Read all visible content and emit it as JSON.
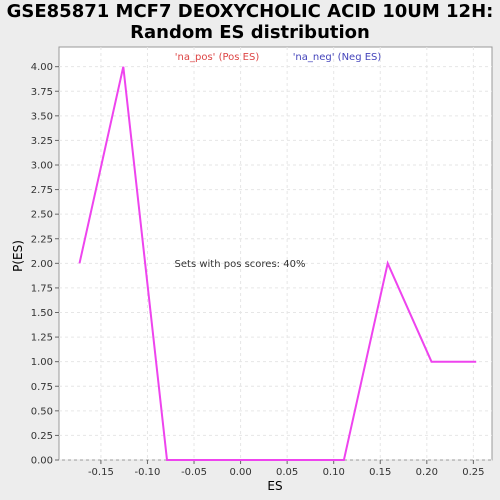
{
  "chart_data": {
    "type": "line",
    "title_line1": "GSE85871 MCF7 DEOXYCHOLIC ACID 10UM 12H:",
    "title_line2": "Random ES distribution",
    "xlabel": "ES",
    "ylabel": "P(ES)",
    "xlim": [
      -0.195,
      0.27
    ],
    "ylim": [
      0,
      4.2
    ],
    "x_ticks": [
      -0.15,
      -0.1,
      -0.05,
      0.0,
      0.05,
      0.1,
      0.15,
      0.2,
      0.25
    ],
    "x_tick_labels": [
      "-0.15",
      "-0.10",
      "-0.05",
      "0.00",
      "0.05",
      "0.10",
      "0.15",
      "0.20",
      "0.25"
    ],
    "y_ticks": [
      0,
      0.25,
      0.5,
      0.75,
      1.0,
      1.25,
      1.5,
      1.75,
      2.0,
      2.25,
      2.5,
      2.75,
      3.0,
      3.25,
      3.5,
      3.75,
      4.0
    ],
    "y_tick_labels": [
      "0.00",
      "0.25",
      "0.50",
      "0.75",
      "1.00",
      "1.25",
      "1.50",
      "1.75",
      "2.00",
      "2.25",
      "2.50",
      "2.75",
      "3.00",
      "3.25",
      "3.50",
      "3.75",
      "4.00"
    ],
    "grid": true,
    "series": [
      {
        "name": "",
        "color": "#ee44ee",
        "x": [
          -0.173,
          -0.126,
          -0.079,
          0.111,
          0.158,
          0.205,
          0.253
        ],
        "y": [
          2.0,
          4.0,
          0.0,
          0.0,
          2.0,
          1.0,
          1.0
        ]
      }
    ],
    "legend": [
      {
        "label": "'na_pos' (Pos ES)",
        "color": "#dd4444"
      },
      {
        "label": "'na_neg' (Neg ES)",
        "color": "#4444bb"
      }
    ],
    "legend_placement": "top",
    "annotation": "Sets with pos scores: 40%"
  }
}
